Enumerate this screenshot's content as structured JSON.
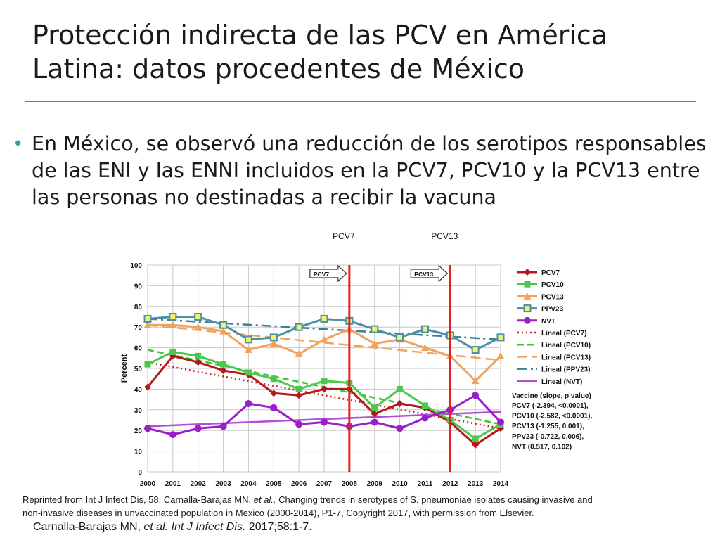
{
  "slide": {
    "title_line1": "Protección indirecta de las PCV en América",
    "title_line2": "Latina: datos procedentes de México",
    "bullet": "En México, se observó una reducción de los serotipos responsables de las ENI y las ENNI incluidos en la PCV7, PCV10 y la PCV13 entre las personas no destinadas a recibir la vacuna",
    "caption_line1_pre": "Reprinted from Int J Infect Dis, 58, Carnalla-Barajas MN, ",
    "caption_line1_italic": "et al.,",
    "caption_line1_post": " Changing trends in serotypes of S. pneumoniae isolates causing invasive and",
    "caption_line2": "non-invasive diseases in unvaccinated population in Mexico (2000-2014), P1-7, Copyright 2017, with permission from Elsevier.",
    "cite_pre": "Carnalla-Barajas MN, ",
    "cite_italic": "et al. Int J Infect Dis.",
    "cite_post": " 2017;58:1-7."
  },
  "chart_data": {
    "type": "line",
    "x": [
      2000,
      2001,
      2002,
      2003,
      2004,
      2005,
      2006,
      2007,
      2008,
      2009,
      2010,
      2011,
      2012,
      2013,
      2014
    ],
    "ylabel": "Percent",
    "ylim": [
      0,
      100
    ],
    "yticks": [
      0,
      10,
      20,
      30,
      40,
      50,
      60,
      70,
      80,
      90,
      100
    ],
    "grid": true,
    "series": [
      {
        "name": "PCV7",
        "color": "#b3191c",
        "marker": "diamond",
        "values": [
          41,
          56,
          53,
          49,
          47,
          38,
          37,
          40,
          40,
          28,
          33,
          31,
          24,
          13,
          21
        ]
      },
      {
        "name": "PCV10",
        "color": "#4cc94c",
        "marker": "square",
        "values": [
          52,
          58,
          56,
          52,
          48,
          45,
          40,
          44,
          43,
          31,
          40,
          32,
          25,
          16,
          23
        ]
      },
      {
        "name": "PCV13",
        "color": "#f0a35e",
        "marker": "triangle",
        "values": [
          71,
          71,
          70,
          68,
          59,
          62,
          57,
          64,
          69,
          62,
          64,
          60,
          56,
          44,
          56
        ]
      },
      {
        "name": "PPV23",
        "color": "#4b8fa8",
        "marker": "square-yellow",
        "values": [
          74,
          75,
          75,
          71,
          64,
          65,
          70,
          74,
          73,
          69,
          65,
          69,
          66,
          59,
          65
        ]
      },
      {
        "name": "NVT",
        "color": "#9b1fc9",
        "marker": "circle",
        "values": [
          21,
          18,
          21,
          22,
          33,
          31,
          23,
          24,
          22,
          24,
          21,
          26,
          30,
          37,
          24
        ]
      }
    ],
    "trendlines": [
      {
        "name": "Lineal (PCV7)",
        "color": "#cc1f1f",
        "style": "dotted",
        "from": 53,
        "to": 21
      },
      {
        "name": "Lineal (PCV10)",
        "color": "#3ec43e",
        "style": "dashed",
        "from": 59,
        "to": 23
      },
      {
        "name": "Lineal (PCV13)",
        "color": "#f0a35e",
        "style": "long-dashed",
        "from": 71,
        "to": 54
      },
      {
        "name": "Lineal (PPV23)",
        "color": "#3f7f95",
        "style": "dash-dot",
        "from": 74,
        "to": 64
      },
      {
        "name": "Lineal (NVT)",
        "color": "#b04fd6",
        "style": "solid",
        "from": 22,
        "to": 29
      }
    ],
    "vertical_markers": [
      {
        "label": "PCV7",
        "arrow_label": "PCV7",
        "x": 2008
      },
      {
        "label": "PCV13",
        "arrow_label": "PCV13",
        "x": 2012
      }
    ],
    "stats_title": "Vaccine (slope, p value)",
    "stats": [
      "PCV7 (-2.394, <0.0001),",
      "PCV10 (-2.582, <0.0001),",
      "PCV13 (-1.255, 0.001),",
      "PPV23 (-0.722,  0.006),",
      "NVT (0.517, 0.102)"
    ]
  }
}
